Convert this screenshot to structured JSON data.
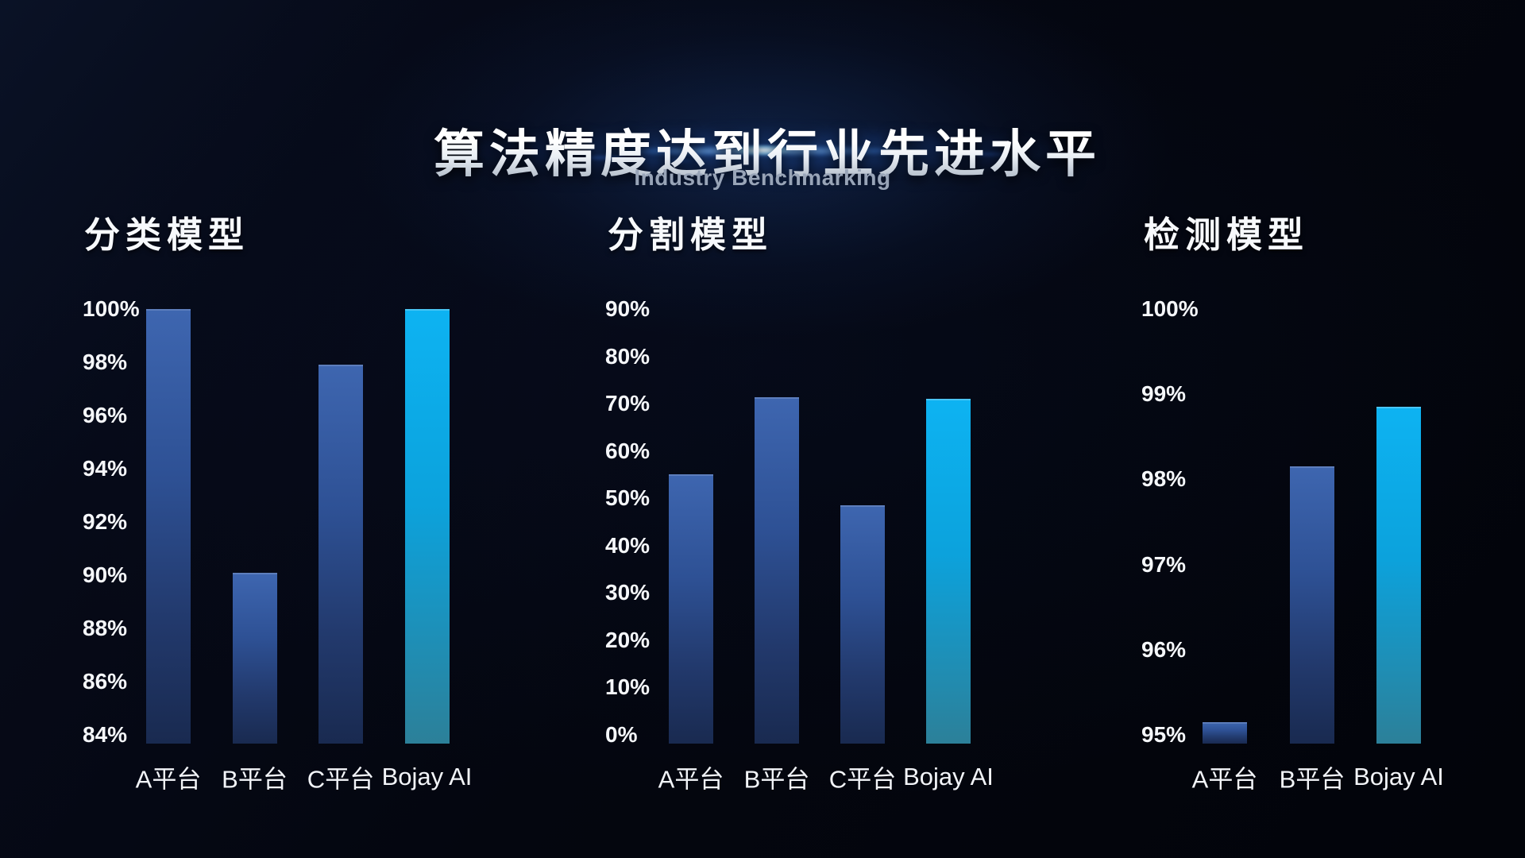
{
  "header": {
    "title": "算法精度达到行业先进水平",
    "subtitle": "Industry Benchmarking"
  },
  "colors": {
    "background": "#04060e",
    "bar_blue_top": "#3e66b0",
    "bar_blue_bottom": "#192a50",
    "bar_cyan_top": "#0db3f2",
    "bar_cyan_bottom": "#2c8099",
    "tick_text": "#f5f7fa",
    "category_text": "#f2f4f8",
    "subtitle_text": "#98a4b7",
    "flare_glow_blue": "#1e4486"
  },
  "chart_data": [
    {
      "type": "bar",
      "title": "分类模型",
      "categories": [
        "A平台",
        "B平台",
        "C平台",
        "Bojay AI"
      ],
      "values": [
        100,
        90.1,
        97.9,
        100
      ],
      "value_unit": "%",
      "ylim": [
        84,
        100
      ],
      "ytick_step": 2,
      "ytick_labels": [
        "100%",
        "98%",
        "96%",
        "94%",
        "92%",
        "90%",
        "88%",
        "86%",
        "84%"
      ],
      "highlight_category": "Bojay AI",
      "grid": false,
      "legend": false
    },
    {
      "type": "bar",
      "title": "分割模型",
      "categories": [
        "A平台",
        "B平台",
        "C平台",
        "Bojay AI"
      ],
      "values": [
        55,
        71.3,
        48.5,
        71
      ],
      "value_unit": "%",
      "ylim": [
        0,
        90
      ],
      "ytick_step": 10,
      "ytick_labels": [
        "90%",
        "80%",
        "70%",
        "60%",
        "50%",
        "40%",
        "30%",
        "20%",
        "10%",
        "0%"
      ],
      "highlight_category": "Bojay AI",
      "grid": false,
      "legend": false
    },
    {
      "type": "bar",
      "title": "检测模型",
      "categories": [
        "A平台",
        "B平台",
        "Bojay AI"
      ],
      "values": [
        95.15,
        98.15,
        98.85
      ],
      "value_unit": "%",
      "ylim": [
        95,
        100
      ],
      "ytick_step": 1,
      "ytick_labels": [
        "100%",
        "99%",
        "98%",
        "97%",
        "96%",
        "95%"
      ],
      "highlight_category": "Bojay AI",
      "grid": false,
      "legend": false
    }
  ]
}
